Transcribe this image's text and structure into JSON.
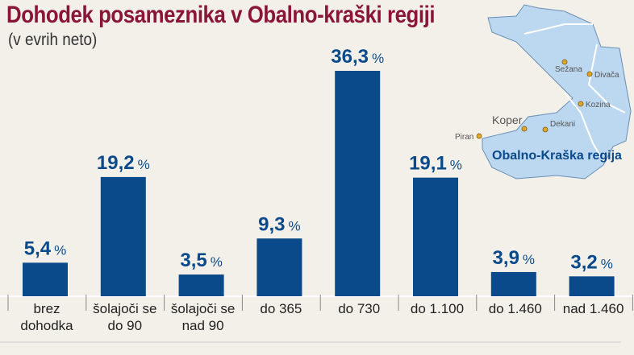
{
  "chart_data": {
    "type": "bar",
    "title": "Dohodek posameznika v Obalno-kraški regiji",
    "subtitle": "(v evrih neto)",
    "categories": [
      [
        "brez",
        "dohodka"
      ],
      [
        "šolajoči se",
        "do 90"
      ],
      [
        "šolajoči se",
        "nad 90"
      ],
      [
        "do 365"
      ],
      [
        "do 730"
      ],
      [
        "do 1.100"
      ],
      [
        "do 1.460"
      ],
      [
        "nad 1.460"
      ]
    ],
    "values": [
      5.4,
      19.2,
      3.5,
      9.3,
      36.3,
      19.1,
      3.9,
      3.2
    ],
    "value_labels": [
      "5,4",
      "19,2",
      "3,5",
      "9,3",
      "36,3",
      "19,1",
      "3,9",
      "3,2"
    ],
    "unit": "%",
    "ylim": [
      0,
      36.3
    ],
    "grid": false,
    "bar_color": "#0b4a8a"
  },
  "map": {
    "region_label": "Obalno-Kraška regija",
    "places": [
      "Sežana",
      "Divača",
      "Kozina",
      "Koper",
      "Dekani",
      "Piran"
    ],
    "fill_color": "#bcd8f0",
    "dot_color": "#e0a82a"
  }
}
